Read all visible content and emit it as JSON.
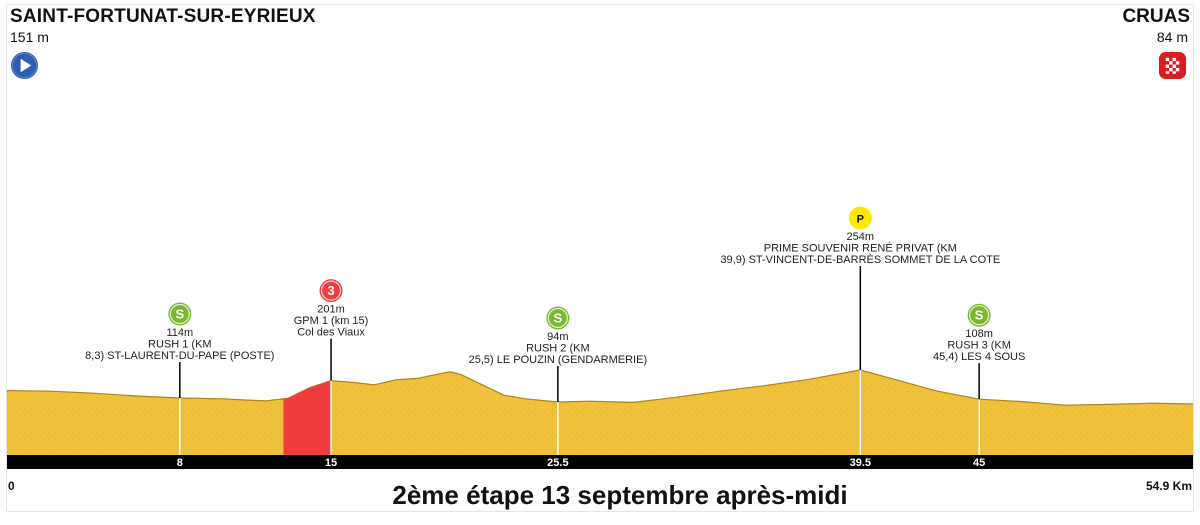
{
  "start": {
    "name": "SAINT-FORTUNAT-SUR-EYRIEUX",
    "altitude": "151 m"
  },
  "finish": {
    "name": "CRUAS",
    "altitude": "84 m"
  },
  "stage_title": "2ème étape 13 septembre après-midi",
  "axis": {
    "start_label": "0",
    "end_label": "54.9 Km"
  },
  "colors": {
    "terrain": "#f0c23c",
    "climb": "#f03c3c",
    "sprint": "#7ab82e",
    "bonus": "#ffe800",
    "axis_bar": "#000000"
  },
  "chart_data": {
    "type": "area",
    "x_unit": "km",
    "y_unit": "m",
    "xlim": [
      0,
      54.9
    ],
    "profile": [
      {
        "km": 0,
        "alt": 151
      },
      {
        "km": 2,
        "alt": 148
      },
      {
        "km": 4,
        "alt": 138
      },
      {
        "km": 6,
        "alt": 124
      },
      {
        "km": 8,
        "alt": 114
      },
      {
        "km": 10,
        "alt": 110
      },
      {
        "km": 11,
        "alt": 104
      },
      {
        "km": 12,
        "alt": 100
      },
      {
        "km": 13,
        "alt": 112
      },
      {
        "km": 14,
        "alt": 165
      },
      {
        "km": 15,
        "alt": 201
      },
      {
        "km": 16,
        "alt": 192
      },
      {
        "km": 17,
        "alt": 180
      },
      {
        "km": 18,
        "alt": 205
      },
      {
        "km": 19,
        "alt": 212
      },
      {
        "km": 20,
        "alt": 235
      },
      {
        "km": 20.5,
        "alt": 245
      },
      {
        "km": 21,
        "alt": 232
      },
      {
        "km": 22,
        "alt": 180
      },
      {
        "km": 23,
        "alt": 128
      },
      {
        "km": 24,
        "alt": 110
      },
      {
        "km": 25.5,
        "alt": 94
      },
      {
        "km": 27,
        "alt": 98
      },
      {
        "km": 29,
        "alt": 92
      },
      {
        "km": 31,
        "alt": 118
      },
      {
        "km": 33,
        "alt": 148
      },
      {
        "km": 35,
        "alt": 175
      },
      {
        "km": 37,
        "alt": 205
      },
      {
        "km": 39.5,
        "alt": 254
      },
      {
        "km": 41,
        "alt": 210
      },
      {
        "km": 43,
        "alt": 150
      },
      {
        "km": 45,
        "alt": 108
      },
      {
        "km": 47,
        "alt": 96
      },
      {
        "km": 49,
        "alt": 78
      },
      {
        "km": 51,
        "alt": 82
      },
      {
        "km": 53,
        "alt": 88
      },
      {
        "km": 54.9,
        "alt": 84
      }
    ],
    "climb_segment": {
      "from_km": 12.8,
      "to_km": 15
    },
    "axis_ticks": [
      "8",
      "15",
      "25.5",
      "39.5",
      "45"
    ],
    "markers": [
      {
        "km": 8,
        "type": "sprint",
        "icon_text": "S",
        "altitude": "114m",
        "lines": [
          "RUSH 1 (KM",
          "8,3) ST-LAURENT-DU-PAPE (POSTE)"
        ]
      },
      {
        "km": 15,
        "type": "climb",
        "icon_text": "3",
        "altitude": "201m",
        "lines": [
          "GPM 1 (km 15)",
          "Col des Viaux"
        ]
      },
      {
        "km": 25.5,
        "type": "sprint",
        "icon_text": "S",
        "altitude": "94m",
        "lines": [
          "RUSH 2 (KM",
          "25,5) LE POUZIN (GENDARMERIE)"
        ]
      },
      {
        "km": 39.5,
        "type": "bonus",
        "icon_text": "P",
        "altitude": "254m",
        "lines": [
          "PRIME SOUVENIR RENÉ PRIVAT (KM",
          "39,9) ST-VINCENT-DE-BARRÈS SOMMET DE LA COTE"
        ]
      },
      {
        "km": 45,
        "type": "sprint",
        "icon_text": "S",
        "altitude": "108m",
        "lines": [
          "RUSH 3 (KM",
          "45,4) LES 4 SOUS"
        ]
      }
    ]
  }
}
